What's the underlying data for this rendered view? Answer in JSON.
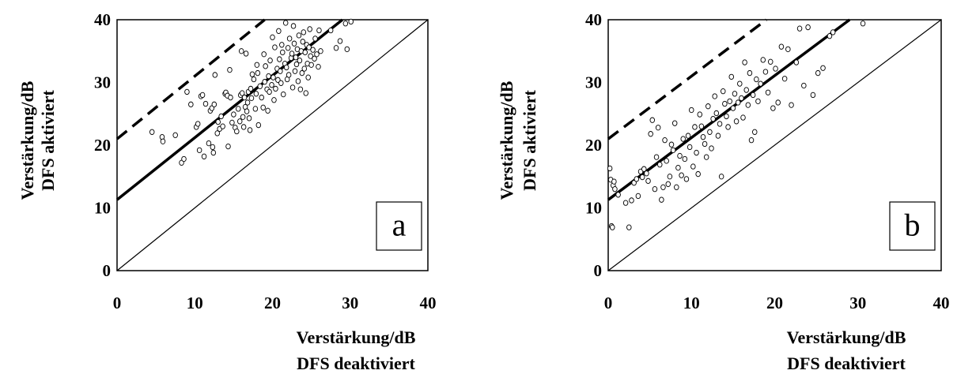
{
  "chart_data": [
    {
      "type": "scatter",
      "panel_label": "a",
      "xlabel": [
        "Verstärkung/dB",
        "DFS deaktiviert"
      ],
      "ylabel": [
        "Verstärkung/dB",
        "DFS aktiviert"
      ],
      "xlim": [
        0,
        40
      ],
      "ylim": [
        0,
        40
      ],
      "xticks": [
        "0",
        "10",
        "20",
        "30",
        "40"
      ],
      "yticks": [
        "0",
        "10",
        "20",
        "30",
        "40"
      ],
      "grid": false,
      "lines": [
        {
          "style": "thin",
          "points": [
            [
              0,
              0
            ],
            [
              40,
              40
            ]
          ]
        },
        {
          "style": "thick",
          "points": [
            [
              0,
              11.3
            ],
            [
              29,
              40
            ]
          ]
        },
        {
          "style": "dashed",
          "points": [
            [
              0,
              21
            ],
            [
              19,
              40
            ]
          ]
        }
      ],
      "points": [
        [
          4.5,
          22.1
        ],
        [
          5.8,
          21.3
        ],
        [
          5.9,
          20.6
        ],
        [
          7.5,
          21.6
        ],
        [
          8.3,
          17.2
        ],
        [
          8.6,
          17.8
        ],
        [
          9.0,
          28.5
        ],
        [
          9.5,
          26.5
        ],
        [
          10.2,
          22.9
        ],
        [
          10.4,
          23.4
        ],
        [
          10.6,
          19.2
        ],
        [
          10.8,
          27.8
        ],
        [
          11.0,
          28.0
        ],
        [
          11.2,
          18.2
        ],
        [
          11.4,
          26.6
        ],
        [
          11.8,
          20.3
        ],
        [
          12.0,
          25.5
        ],
        [
          12.2,
          25.9
        ],
        [
          12.3,
          19.7
        ],
        [
          12.4,
          18.8
        ],
        [
          12.5,
          26.5
        ],
        [
          12.6,
          31.2
        ],
        [
          12.9,
          21.9
        ],
        [
          13.0,
          23.7
        ],
        [
          13.2,
          22.6
        ],
        [
          13.4,
          24.6
        ],
        [
          13.6,
          23.0
        ],
        [
          13.9,
          28.2
        ],
        [
          14.0,
          28.4
        ],
        [
          14.2,
          27.9
        ],
        [
          14.3,
          19.8
        ],
        [
          14.5,
          32.0
        ],
        [
          14.6,
          27.6
        ],
        [
          14.8,
          23.6
        ],
        [
          15.0,
          24.9
        ],
        [
          15.2,
          22.8
        ],
        [
          15.4,
          22.2
        ],
        [
          15.6,
          25.8
        ],
        [
          15.8,
          23.8
        ],
        [
          15.9,
          28.0
        ],
        [
          16.0,
          35.0
        ],
        [
          16.1,
          28.3
        ],
        [
          16.2,
          24.5
        ],
        [
          16.3,
          22.9
        ],
        [
          16.4,
          27.6
        ],
        [
          16.5,
          26.1
        ],
        [
          16.6,
          34.6
        ],
        [
          16.7,
          25.4
        ],
        [
          16.8,
          26.8
        ],
        [
          16.9,
          28.5
        ],
        [
          17.0,
          24.3
        ],
        [
          17.1,
          22.4
        ],
        [
          17.2,
          29.0
        ],
        [
          17.3,
          27.5
        ],
        [
          17.4,
          31.3
        ],
        [
          17.6,
          30.5
        ],
        [
          17.8,
          25.8
        ],
        [
          17.9,
          28.2
        ],
        [
          18.0,
          32.8
        ],
        [
          18.1,
          31.5
        ],
        [
          18.2,
          23.2
        ],
        [
          18.4,
          29.4
        ],
        [
          18.6,
          27.6
        ],
        [
          18.8,
          26.0
        ],
        [
          18.9,
          34.5
        ],
        [
          19.0,
          30.1
        ],
        [
          19.1,
          32.6
        ],
        [
          19.3,
          28.9
        ],
        [
          19.4,
          25.5
        ],
        [
          19.5,
          31.0
        ],
        [
          19.6,
          28.5
        ],
        [
          19.7,
          33.5
        ],
        [
          19.9,
          29.6
        ],
        [
          20.0,
          37.2
        ],
        [
          20.1,
          30.8
        ],
        [
          20.2,
          27.2
        ],
        [
          20.3,
          35.6
        ],
        [
          20.4,
          29.0
        ],
        [
          20.6,
          32.2
        ],
        [
          20.7,
          30.4
        ],
        [
          20.8,
          38.2
        ],
        [
          20.9,
          33.7
        ],
        [
          21.0,
          31.8
        ],
        [
          21.1,
          29.9
        ],
        [
          21.2,
          36.0
        ],
        [
          21.3,
          34.8
        ],
        [
          21.4,
          28.1
        ],
        [
          21.6,
          33.0
        ],
        [
          21.7,
          39.5
        ],
        [
          21.8,
          32.4
        ],
        [
          21.9,
          30.5
        ],
        [
          22.0,
          35.5
        ],
        [
          22.1,
          31.2
        ],
        [
          22.2,
          37.0
        ],
        [
          22.4,
          33.9
        ],
        [
          22.5,
          34.6
        ],
        [
          22.6,
          29.2
        ],
        [
          22.7,
          39.0
        ],
        [
          22.8,
          36.2
        ],
        [
          22.9,
          31.8
        ],
        [
          23.0,
          34.0
        ],
        [
          23.1,
          32.9
        ],
        [
          23.2,
          35.3
        ],
        [
          23.3,
          30.2
        ],
        [
          23.4,
          37.5
        ],
        [
          23.5,
          33.5
        ],
        [
          23.6,
          28.9
        ],
        [
          23.7,
          35.0
        ],
        [
          23.8,
          31.5
        ],
        [
          23.9,
          36.5
        ],
        [
          24.0,
          38.0
        ],
        [
          24.1,
          32.2
        ],
        [
          24.2,
          34.8
        ],
        [
          24.3,
          28.3
        ],
        [
          24.4,
          36.0
        ],
        [
          24.5,
          33.0
        ],
        [
          24.6,
          30.8
        ],
        [
          24.7,
          35.6
        ],
        [
          24.8,
          38.5
        ],
        [
          24.9,
          34.2
        ],
        [
          25.0,
          32.8
        ],
        [
          25.2,
          35.2
        ],
        [
          25.4,
          33.8
        ],
        [
          25.5,
          37.0
        ],
        [
          25.7,
          34.5
        ],
        [
          25.9,
          32.5
        ],
        [
          26.0,
          38.3
        ],
        [
          26.2,
          35.0
        ],
        [
          27.5,
          38.3
        ],
        [
          28.2,
          35.5
        ],
        [
          28.7,
          36.6
        ],
        [
          29.4,
          39.4
        ],
        [
          29.6,
          35.3
        ],
        [
          30.1,
          39.7
        ]
      ]
    },
    {
      "type": "scatter",
      "panel_label": "b",
      "xlabel": [
        "Verstärkung/dB",
        "DFS deaktiviert"
      ],
      "ylabel": [
        "Verstärkung/dB",
        "DFS aktiviert"
      ],
      "xlim": [
        0,
        40
      ],
      "ylim": [
        0,
        40
      ],
      "xticks": [
        "0",
        "10",
        "20",
        "30",
        "40"
      ],
      "yticks": [
        "0",
        "10",
        "20",
        "30",
        "40"
      ],
      "grid": false,
      "lines": [
        {
          "style": "thin",
          "points": [
            [
              0,
              0
            ],
            [
              40,
              40
            ]
          ]
        },
        {
          "style": "thick",
          "points": [
            [
              0,
              11.3
            ],
            [
              29,
              40
            ]
          ]
        },
        {
          "style": "dashed",
          "points": [
            [
              0,
              21
            ],
            [
              19,
              40
            ]
          ]
        }
      ],
      "points": [
        [
          0.2,
          16.3
        ],
        [
          0.3,
          14.5
        ],
        [
          0.4,
          7.1
        ],
        [
          0.5,
          6.9
        ],
        [
          0.6,
          13.6
        ],
        [
          0.7,
          14.2
        ],
        [
          0.8,
          13.0
        ],
        [
          1.2,
          12.1
        ],
        [
          2.1,
          10.8
        ],
        [
          2.5,
          6.9
        ],
        [
          2.8,
          11.2
        ],
        [
          3.1,
          14.0
        ],
        [
          3.4,
          14.6
        ],
        [
          3.6,
          11.9
        ],
        [
          3.9,
          15.8
        ],
        [
          4.1,
          14.9
        ],
        [
          4.3,
          16.2
        ],
        [
          4.6,
          15.5
        ],
        [
          4.8,
          14.3
        ],
        [
          5.1,
          21.8
        ],
        [
          5.3,
          24.0
        ],
        [
          5.6,
          13.0
        ],
        [
          5.8,
          18.1
        ],
        [
          6.0,
          22.8
        ],
        [
          6.2,
          16.9
        ],
        [
          6.4,
          11.3
        ],
        [
          6.6,
          13.3
        ],
        [
          6.8,
          20.8
        ],
        [
          7.0,
          17.5
        ],
        [
          7.2,
          13.8
        ],
        [
          7.4,
          15.0
        ],
        [
          7.6,
          20.1
        ],
        [
          7.8,
          19.2
        ],
        [
          8.0,
          23.5
        ],
        [
          8.2,
          13.3
        ],
        [
          8.4,
          16.4
        ],
        [
          8.6,
          18.3
        ],
        [
          8.8,
          15.2
        ],
        [
          9.0,
          21.0
        ],
        [
          9.2,
          17.8
        ],
        [
          9.4,
          14.6
        ],
        [
          9.6,
          21.5
        ],
        [
          9.8,
          19.7
        ],
        [
          10.0,
          25.6
        ],
        [
          10.2,
          16.6
        ],
        [
          10.4,
          22.9
        ],
        [
          10.6,
          18.8
        ],
        [
          10.8,
          15.4
        ],
        [
          11.0,
          24.9
        ],
        [
          11.2,
          23.0
        ],
        [
          11.4,
          21.3
        ],
        [
          11.6,
          20.2
        ],
        [
          11.8,
          18.1
        ],
        [
          12.0,
          26.2
        ],
        [
          12.2,
          22.1
        ],
        [
          12.4,
          19.5
        ],
        [
          12.6,
          24.2
        ],
        [
          12.8,
          27.8
        ],
        [
          13.0,
          25.1
        ],
        [
          13.2,
          21.5
        ],
        [
          13.4,
          23.4
        ],
        [
          13.6,
          15.0
        ],
        [
          13.8,
          28.6
        ],
        [
          14.0,
          26.6
        ],
        [
          14.2,
          24.6
        ],
        [
          14.4,
          22.9
        ],
        [
          14.6,
          27.0
        ],
        [
          14.8,
          30.9
        ],
        [
          15.0,
          25.9
        ],
        [
          15.2,
          28.2
        ],
        [
          15.4,
          23.8
        ],
        [
          15.6,
          26.8
        ],
        [
          15.8,
          29.8
        ],
        [
          16.0,
          27.5
        ],
        [
          16.2,
          24.4
        ],
        [
          16.4,
          33.2
        ],
        [
          16.6,
          28.8
        ],
        [
          16.8,
          26.4
        ],
        [
          17.0,
          31.5
        ],
        [
          17.2,
          20.8
        ],
        [
          17.4,
          28.0
        ],
        [
          17.6,
          22.1
        ],
        [
          17.8,
          30.5
        ],
        [
          18.0,
          27.0
        ],
        [
          18.3,
          29.8
        ],
        [
          18.6,
          33.6
        ],
        [
          18.9,
          31.7
        ],
        [
          19.2,
          28.4
        ],
        [
          19.5,
          33.3
        ],
        [
          19.8,
          25.9
        ],
        [
          20.1,
          32.2
        ],
        [
          20.4,
          26.8
        ],
        [
          20.8,
          35.7
        ],
        [
          21.2,
          30.6
        ],
        [
          21.6,
          35.3
        ],
        [
          22.0,
          26.4
        ],
        [
          22.6,
          33.2
        ],
        [
          23.0,
          38.6
        ],
        [
          23.5,
          29.5
        ],
        [
          24.0,
          38.8
        ],
        [
          24.6,
          28.0
        ],
        [
          25.2,
          31.5
        ],
        [
          25.8,
          32.3
        ],
        [
          26.6,
          37.4
        ],
        [
          27.0,
          38.0
        ],
        [
          30.6,
          39.4
        ]
      ]
    }
  ]
}
